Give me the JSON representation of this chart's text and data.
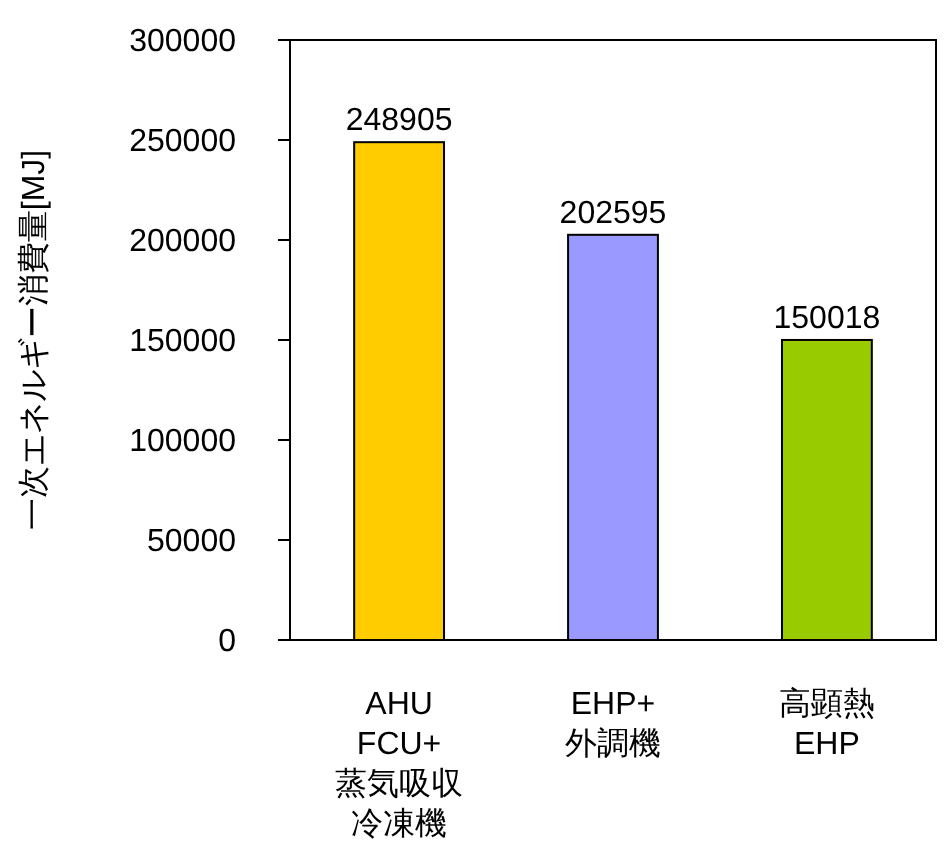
{
  "chart_data": {
    "type": "bar",
    "ylabel": "一次エネルギー消費量[MJ]",
    "categories": [
      "AHU\nFCU+\n蒸気吸収冷凍機",
      "EHP+\n外調機",
      "高顕熱\nEHP"
    ],
    "values": [
      248905,
      202595,
      150018
    ],
    "colors": [
      "#ffcc00",
      "#9999ff",
      "#99cc00"
    ],
    "ylim": [
      0,
      300000
    ],
    "yticks": [
      0,
      50000,
      100000,
      150000,
      200000,
      250000,
      300000
    ],
    "data_labels": true,
    "grid": false
  }
}
